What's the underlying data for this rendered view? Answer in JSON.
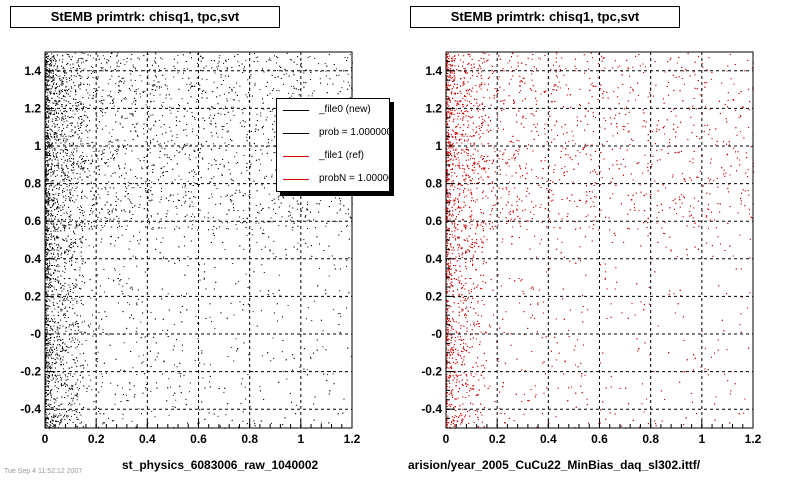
{
  "chart_data": [
    {
      "type": "scatter",
      "title": "StEMB primtrk: chisq1, tpc,svt",
      "xlabel": "st_physics_6083006_raw_1040002",
      "xlim": [
        0,
        1.2
      ],
      "ylim": [
        -0.5,
        1.5
      ],
      "xticks": [
        "0",
        "0.2",
        "0.4",
        "0.6",
        "0.8",
        "1",
        "1.2"
      ],
      "yticks": [
        "-0.4",
        "-0.2",
        "-0",
        "0.2",
        "0.4",
        "0.6",
        "0.8",
        "1",
        "1.2",
        "1.4"
      ],
      "grid": true,
      "marker_color": "#000000",
      "legend": {
        "placement": "top-right",
        "entries": [
          {
            "label": "_file0 (new)",
            "color": "#000000"
          },
          {
            "label": "prob = 1.000000",
            "color": "#000000"
          },
          {
            "label": "_file1 (ref)",
            "color": "#cc0000"
          },
          {
            "label": "probN = 1.000000",
            "color": "#cc0000"
          }
        ]
      }
    },
    {
      "type": "scatter",
      "title": "StEMB primtrk: chisq1, tpc,svt",
      "xlabel": "arision/year_2005_CuCu22_MinBias_daq_sl302.ittf/",
      "xlim": [
        0,
        1.2
      ],
      "ylim": [
        -0.5,
        1.5
      ],
      "xticks": [
        "0",
        "0.2",
        "0.4",
        "0.6",
        "0.8",
        "1",
        "1.2"
      ],
      "yticks": [
        "-0.4",
        "-0.2",
        "-0",
        "0.2",
        "0.4",
        "0.6",
        "0.8",
        "1",
        "1.2",
        "1.4"
      ],
      "grid": true,
      "marker_color": "#cc0000"
    }
  ],
  "footer": "Tue Sep 4 11:52:12 2007"
}
